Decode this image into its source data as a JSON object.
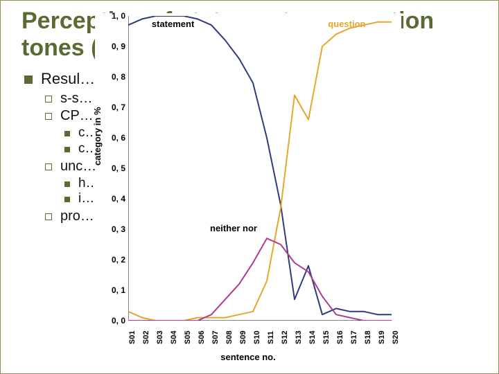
{
  "title": "Perception of statement vs. question tones (with …)",
  "bullets": {
    "root": "Resul…",
    "sub": [
      "s-s…",
      "CP…",
      "unc…",
      "pro…  –  design in c…"
    ],
    "sub2_cp": [
      "c…  …ng)",
      "c…  …nd P"
    ],
    "sub2_unc": [
      "h…  …nce than in s…  … gradual p…",
      "i…"
    ]
  },
  "chart": {
    "type": "line",
    "background_color": "#ffffff",
    "axis_color": "#000000",
    "tick_fontsize": 12,
    "label_fontsize": 13,
    "line_width": 2,
    "marker": "none",
    "ylabel": "category in %",
    "xlabel": "sentence no.",
    "ylim": [
      0.0,
      1.0
    ],
    "yticks": [
      0.0,
      0.1,
      0.2,
      0.3,
      0.4,
      0.5,
      0.6,
      0.7,
      0.8,
      0.9,
      1.0
    ],
    "ytick_labels": [
      "0, 0",
      "0, 1",
      "0, 2",
      "0, 3",
      "0, 4",
      "0, 5",
      "0, 6",
      "0, 7",
      "0, 8",
      "0, 9",
      "1, 0"
    ],
    "categories": [
      "S01",
      "S02",
      "S03",
      "S04",
      "S05",
      "S06",
      "S07",
      "S08",
      "S09",
      "S10",
      "S11",
      "S12",
      "S13",
      "S14",
      "S15",
      "S16",
      "S17",
      "S18",
      "S19",
      "S20"
    ],
    "series": [
      {
        "key": "statement",
        "label": "statement",
        "color": "#2f3b7a",
        "label_pos": {
          "x_frac": 0.17,
          "y_frac": 0.01
        },
        "label_color": "#000000",
        "values": [
          0.97,
          0.99,
          1.0,
          1.0,
          1.0,
          0.99,
          0.97,
          0.92,
          0.86,
          0.78,
          0.6,
          0.38,
          0.07,
          0.18,
          0.02,
          0.04,
          0.03,
          0.03,
          0.02,
          0.02
        ]
      },
      {
        "key": "question",
        "label": "question",
        "color": "#e3a72b",
        "label_pos": {
          "x_frac": 0.83,
          "y_frac": 0.01
        },
        "label_color": "#e3a72b",
        "values": [
          0.03,
          0.01,
          0.0,
          0.0,
          0.0,
          0.01,
          0.01,
          0.01,
          0.02,
          0.03,
          0.13,
          0.37,
          0.74,
          0.66,
          0.9,
          0.94,
          0.96,
          0.97,
          0.98,
          0.98
        ]
      },
      {
        "key": "neither",
        "label": "neither nor",
        "color": "#b23a8e",
        "label_pos": {
          "x_frac": 0.4,
          "y_frac": 0.68
        },
        "label_color": "#000000",
        "values": [
          0.0,
          0.0,
          0.0,
          0.0,
          0.0,
          0.0,
          0.02,
          0.07,
          0.12,
          0.19,
          0.27,
          0.25,
          0.19,
          0.16,
          0.08,
          0.02,
          0.01,
          0.0,
          0.0,
          0.0
        ]
      }
    ]
  }
}
